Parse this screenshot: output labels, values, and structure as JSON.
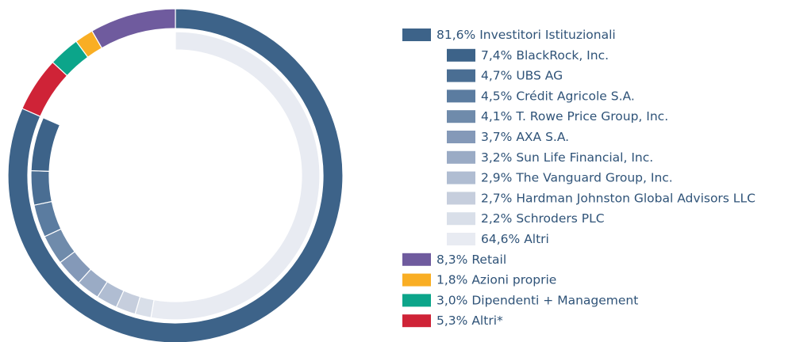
{
  "chart_data": {
    "type": "donut",
    "categories": [
      "Investitori Istituzionali",
      "Retail",
      "Azioni proprie",
      "Dipendenti + Management",
      "Altri*"
    ],
    "values": [
      81.6,
      8.3,
      1.8,
      3.0,
      5.3
    ],
    "value_labels": [
      "81,6%",
      "8,3%",
      "1,8%",
      "3,0%",
      "5,3%"
    ],
    "colors": [
      "#3d6389",
      "#6f5b9e",
      "#f9ae24",
      "#0ca58a",
      "#cf2337"
    ],
    "breakdown": {
      "categories": [
        "BlackRock, Inc.",
        "UBS AG",
        "Crédit Agricole S.A.",
        "T. Rowe Price Group, Inc.",
        "AXA S.A.",
        "Sun Life Financial, Inc.",
        "The Vanguard Group, Inc.",
        "Hardman Johnston Global Advisors LLC",
        "Schroders PLC",
        "Altri"
      ],
      "values": [
        7.4,
        4.7,
        4.5,
        4.1,
        3.7,
        3.2,
        2.9,
        2.7,
        2.2,
        64.6
      ],
      "value_labels": [
        "7,4%",
        "4,7%",
        "4,5%",
        "4,1%",
        "3,7%",
        "3,2%",
        "2,9%",
        "2,7%",
        "2,2%",
        "64,6%"
      ],
      "colors": [
        "#3d6389",
        "#4a6e93",
        "#5b7ca0",
        "#6f8bab",
        "#8499b8",
        "#9aabc5",
        "#b0bdd2",
        "#c6cedd",
        "#d9dfe9",
        "#e8ebf2"
      ]
    }
  }
}
